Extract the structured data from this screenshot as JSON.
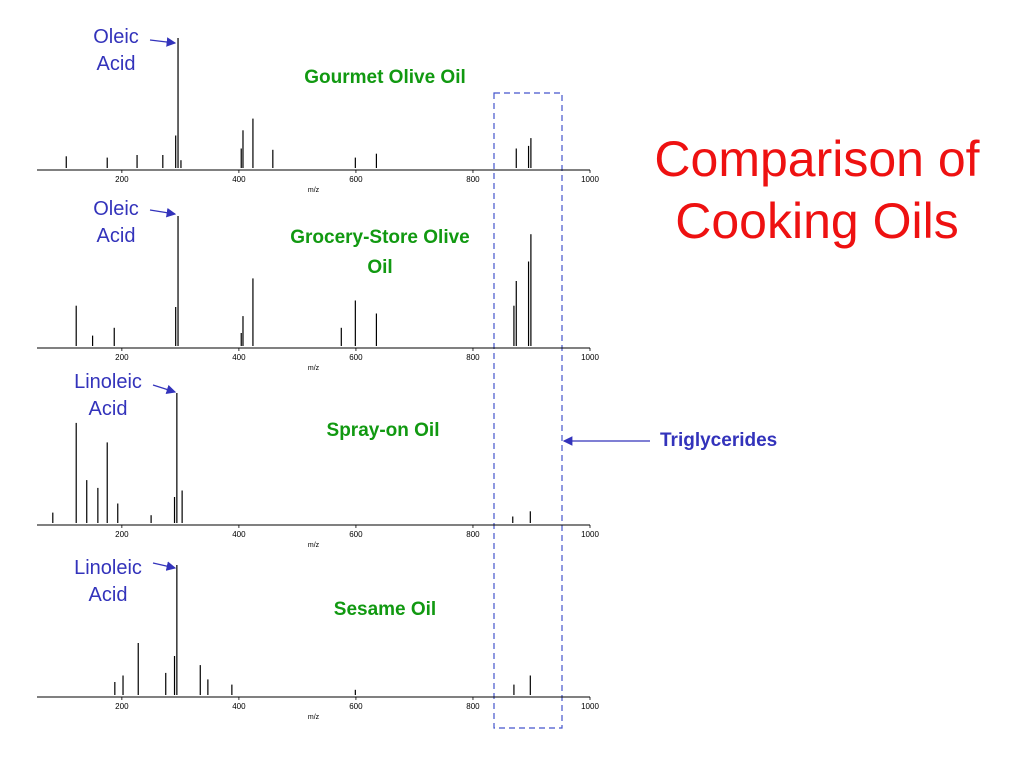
{
  "title": "Comparison of Cooking Oils",
  "triglycerides_label": "Triglycerides",
  "chart_data": [
    {
      "type": "bar",
      "title": "Gourmet Olive Oil",
      "annotation": "Oleic Acid",
      "x_label": "m/z",
      "color": "#000000",
      "x": [
        105,
        175,
        226,
        270,
        292,
        296,
        301,
        404,
        407,
        424,
        458,
        599,
        635,
        874,
        895,
        899
      ],
      "values": [
        9,
        8,
        10,
        10,
        25,
        100,
        6,
        15,
        29,
        38,
        14,
        8,
        11,
        15,
        17,
        23
      ],
      "xlim": [
        55,
        1000
      ],
      "xticks": [
        200,
        400,
        600,
        800,
        1000
      ],
      "ylim": [
        0,
        100
      ]
    },
    {
      "type": "bar",
      "title": "Grocery-Store Olive Oil",
      "annotation": "Oleic Acid",
      "x_label": "m/z",
      "color": "#000000",
      "x": [
        122,
        150,
        187,
        292,
        296,
        404,
        407,
        424,
        575,
        599,
        635,
        870,
        874,
        895,
        899
      ],
      "values": [
        31,
        8,
        14,
        30,
        100,
        10,
        23,
        52,
        14,
        35,
        25,
        31,
        50,
        65,
        86
      ],
      "xlim": [
        55,
        1000
      ],
      "xticks": [
        200,
        400,
        600,
        800,
        1000
      ],
      "ylim": [
        0,
        100
      ]
    },
    {
      "type": "bar",
      "title": "Spray-on Oil",
      "annotation": "Linoleic Acid",
      "x_label": "m/z",
      "color": "#000000",
      "x": [
        82,
        122,
        140,
        159,
        175,
        193,
        250,
        290,
        294,
        303,
        868,
        898
      ],
      "values": [
        8,
        77,
        33,
        27,
        62,
        15,
        6,
        20,
        100,
        25,
        5,
        9
      ],
      "xlim": [
        55,
        1000
      ],
      "xticks": [
        200,
        400,
        600,
        800,
        1000
      ],
      "ylim": [
        0,
        100
      ]
    },
    {
      "type": "bar",
      "title": "Sesame Oil",
      "annotation": "Linoleic Acid",
      "x_label": "m/z",
      "color": "#000000",
      "x": [
        188,
        202,
        228,
        275,
        290,
        294,
        334,
        347,
        388,
        599,
        870,
        898
      ],
      "values": [
        10,
        15,
        40,
        17,
        30,
        100,
        23,
        12,
        8,
        4,
        8,
        15
      ],
      "xlim": [
        55,
        1000
      ],
      "xticks": [
        200,
        400,
        600,
        800,
        1000
      ],
      "ylim": [
        0,
        100
      ]
    }
  ]
}
